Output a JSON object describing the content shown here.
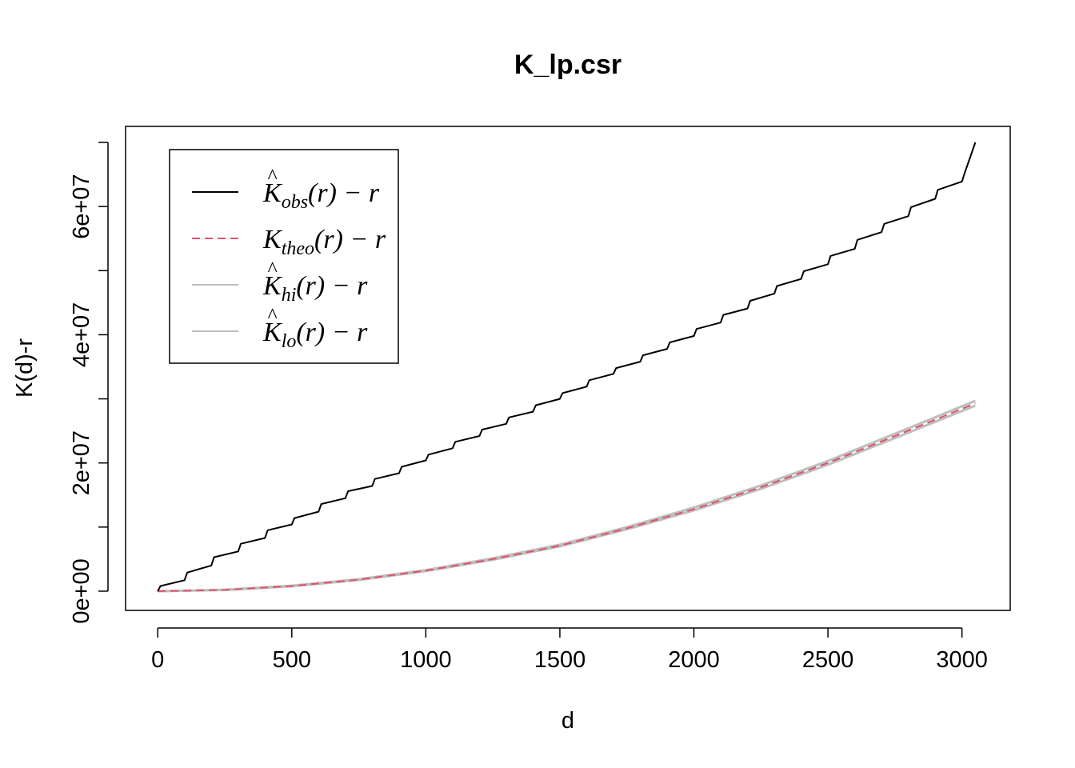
{
  "chart_data": {
    "type": "line",
    "title": "K_lp.csr",
    "xlabel": "d",
    "ylabel": "K(d)-r",
    "xlim": [
      -120,
      3180
    ],
    "ylim": [
      -3000000,
      72500000
    ],
    "x_ticks": [
      0,
      500,
      1000,
      1500,
      2000,
      2500,
      3000
    ],
    "x_tick_labels": [
      "0",
      "500",
      "1000",
      "1500",
      "2000",
      "2500",
      "3000"
    ],
    "y_ticks": [
      0,
      10000000,
      20000000,
      30000000,
      40000000,
      50000000,
      60000000,
      70000000
    ],
    "y_tick_labels": [
      "0e+00",
      "",
      "2e+07",
      "",
      "4e+07",
      "",
      "6e+07",
      ""
    ],
    "legend_position": "top-left",
    "series": [
      {
        "name": "obs",
        "label_main": "K",
        "label_hat": "^",
        "label_sub": "obs",
        "label_tail": "(r) − r",
        "color": "#000000",
        "dash": "solid",
        "x": [
          0,
          10,
          100,
          110,
          200,
          210,
          300,
          310,
          400,
          410,
          500,
          510,
          600,
          610,
          700,
          710,
          800,
          810,
          900,
          910,
          1000,
          1010,
          1100,
          1110,
          1200,
          1210,
          1300,
          1310,
          1400,
          1410,
          1500,
          1510,
          1600,
          1610,
          1700,
          1710,
          1800,
          1810,
          1900,
          1910,
          2000,
          2010,
          2100,
          2110,
          2200,
          2210,
          2300,
          2310,
          2400,
          2410,
          2500,
          2510,
          2600,
          2610,
          2700,
          2710,
          2800,
          2810,
          2900,
          2910,
          3000,
          3010,
          3050
        ],
        "y": [
          0,
          800000,
          1700000,
          2900000,
          4000000,
          5300000,
          6200000,
          7400000,
          8300000,
          9500000,
          10400000,
          11400000,
          12400000,
          13600000,
          14500000,
          15600000,
          16400000,
          17500000,
          18400000,
          19400000,
          20400000,
          21300000,
          22300000,
          23300000,
          24200000,
          25200000,
          26100000,
          27100000,
          28000000,
          29000000,
          30000000,
          30900000,
          31900000,
          32900000,
          33900000,
          34800000,
          35800000,
          36800000,
          37800000,
          38800000,
          39800000,
          40900000,
          41900000,
          43100000,
          44100000,
          45300000,
          46400000,
          47600000,
          48700000,
          49900000,
          51000000,
          52300000,
          53400000,
          54800000,
          56000000,
          57300000,
          58500000,
          59900000,
          61200000,
          62600000,
          63900000,
          65200000,
          70000000
        ]
      },
      {
        "name": "theo",
        "label_main": "K",
        "label_hat": "",
        "label_sub": "theo",
        "label_tail": "(r) − r",
        "color": "#DF536B",
        "dash": "dashed",
        "x": [
          0,
          250,
          500,
          750,
          1000,
          1250,
          1500,
          1750,
          2000,
          2250,
          2500,
          2750,
          3050
        ],
        "y": [
          0,
          200000,
          800000,
          1800000,
          3200000,
          5000000,
          7100000,
          9800000,
          12800000,
          16200000,
          20000000,
          24200000,
          29300000
        ]
      },
      {
        "name": "hi",
        "label_main": "K",
        "label_hat": "^",
        "label_sub": "hi",
        "label_tail": "(r) − r",
        "color": "#BEBEBE",
        "dash": "solid",
        "x": [
          0,
          250,
          500,
          750,
          1000,
          1250,
          1500,
          1750,
          2000,
          2250,
          2500,
          2750,
          3050
        ],
        "y": [
          0,
          230000,
          850000,
          1870000,
          3290000,
          5120000,
          7260000,
          9980000,
          13050000,
          16480000,
          20300000,
          24550000,
          29700000
        ]
      },
      {
        "name": "lo",
        "label_main": "K",
        "label_hat": "^",
        "label_sub": "lo",
        "label_tail": "(r) − r",
        "color": "#BEBEBE",
        "dash": "solid",
        "x": [
          0,
          250,
          500,
          750,
          1000,
          1250,
          1500,
          1750,
          2000,
          2250,
          2500,
          2750,
          3050
        ],
        "y": [
          0,
          180000,
          760000,
          1740000,
          3130000,
          4900000,
          7000000,
          9650000,
          12600000,
          15950000,
          19720000,
          23880000,
          28950000
        ]
      }
    ]
  }
}
